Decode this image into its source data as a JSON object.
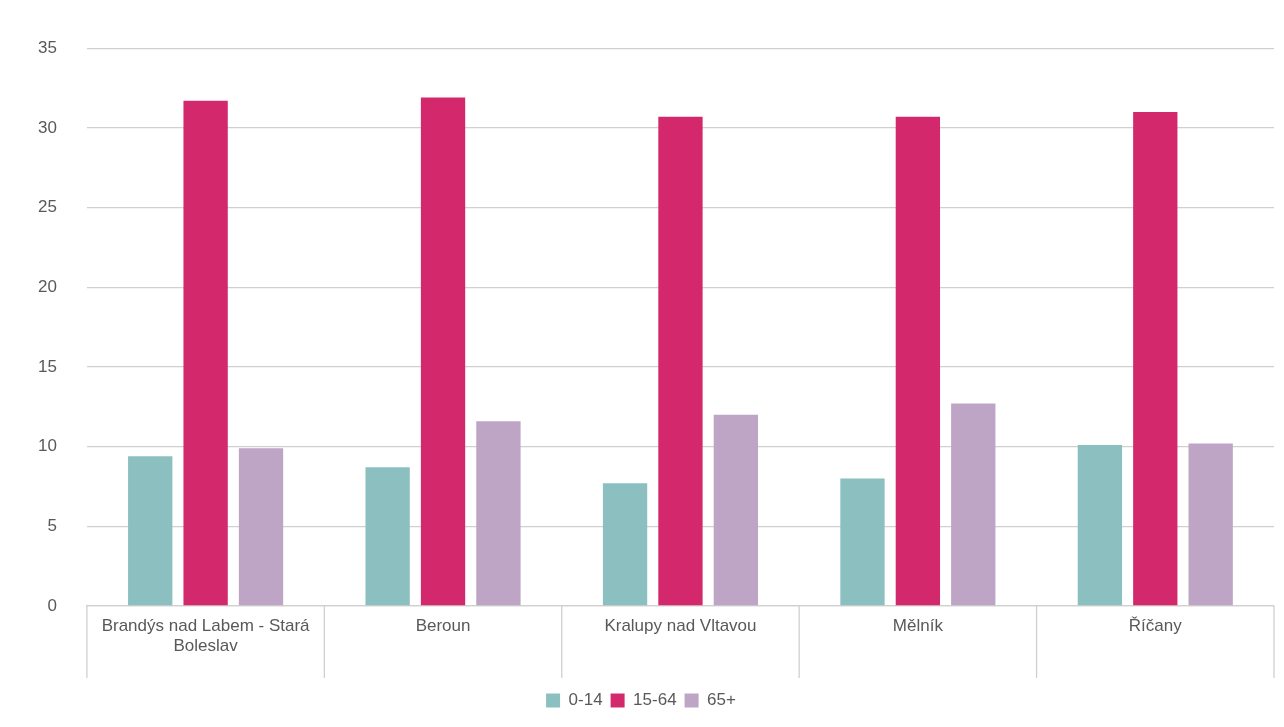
{
  "chart_data": {
    "type": "bar",
    "categories": [
      "Brandýs nad Labem - Stará Boleslav",
      "Beroun",
      "Kralupy nad Vltavou",
      "Mělník",
      "Říčany"
    ],
    "series": [
      {
        "name": "0-14",
        "color": "#8cbfbf",
        "values": [
          9.4,
          8.7,
          7.7,
          8.0,
          10.1
        ]
      },
      {
        "name": "15-64",
        "color": "#d4286c",
        "values": [
          31.7,
          31.9,
          30.7,
          30.7,
          31.0
        ]
      },
      {
        "name": "65+",
        "color": "#bea5c5",
        "values": [
          9.9,
          11.6,
          12.0,
          12.7,
          10.2
        ]
      }
    ],
    "ylim": [
      0,
      35
    ],
    "yticks": [
      0,
      5,
      10,
      15,
      20,
      25,
      30,
      35
    ],
    "grid": "y",
    "legend": "bottom"
  }
}
